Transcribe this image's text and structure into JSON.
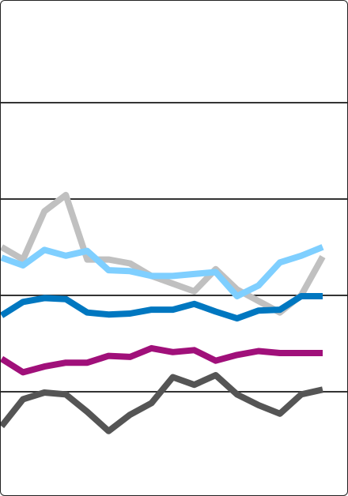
{
  "chart_data": {
    "type": "line",
    "title": "",
    "xlabel": "",
    "ylabel": "",
    "x": [
      1,
      2,
      3,
      4,
      5,
      6,
      7,
      8,
      9,
      10,
      11,
      12,
      13,
      14,
      15,
      16
    ],
    "ylim": [
      0,
      5
    ],
    "grid": "horizontal",
    "legend": "none",
    "series": [
      {
        "color": "#c0c0c0",
        "values": [
          2.51,
          2.38,
          2.88,
          3.05,
          2.38,
          2.38,
          2.34,
          2.21,
          2.13,
          2.05,
          2.28,
          2.07,
          1.95,
          1.83,
          2.01,
          2.41
        ]
      },
      {
        "color": "#7fcfff",
        "values": [
          2.4,
          2.32,
          2.48,
          2.42,
          2.47,
          2.27,
          2.26,
          2.21,
          2.21,
          2.23,
          2.25,
          2.0,
          2.11,
          2.35,
          2.42,
          2.51
        ]
      },
      {
        "color": "#0077c0",
        "values": [
          1.8,
          1.94,
          1.98,
          1.97,
          1.83,
          1.81,
          1.82,
          1.86,
          1.86,
          1.92,
          1.84,
          1.77,
          1.85,
          1.86,
          2.0,
          2.0
        ]
      },
      {
        "color": "#a0107a",
        "values": [
          1.35,
          1.21,
          1.27,
          1.31,
          1.31,
          1.38,
          1.37,
          1.46,
          1.42,
          1.44,
          1.33,
          1.39,
          1.43,
          1.41,
          1.41,
          1.41
        ]
      },
      {
        "color": "#555555",
        "values": [
          0.65,
          0.93,
          1.0,
          0.98,
          0.8,
          0.6,
          0.77,
          0.89,
          1.16,
          1.08,
          1.18,
          0.98,
          0.87,
          0.78,
          0.98,
          1.03
        ]
      }
    ]
  }
}
